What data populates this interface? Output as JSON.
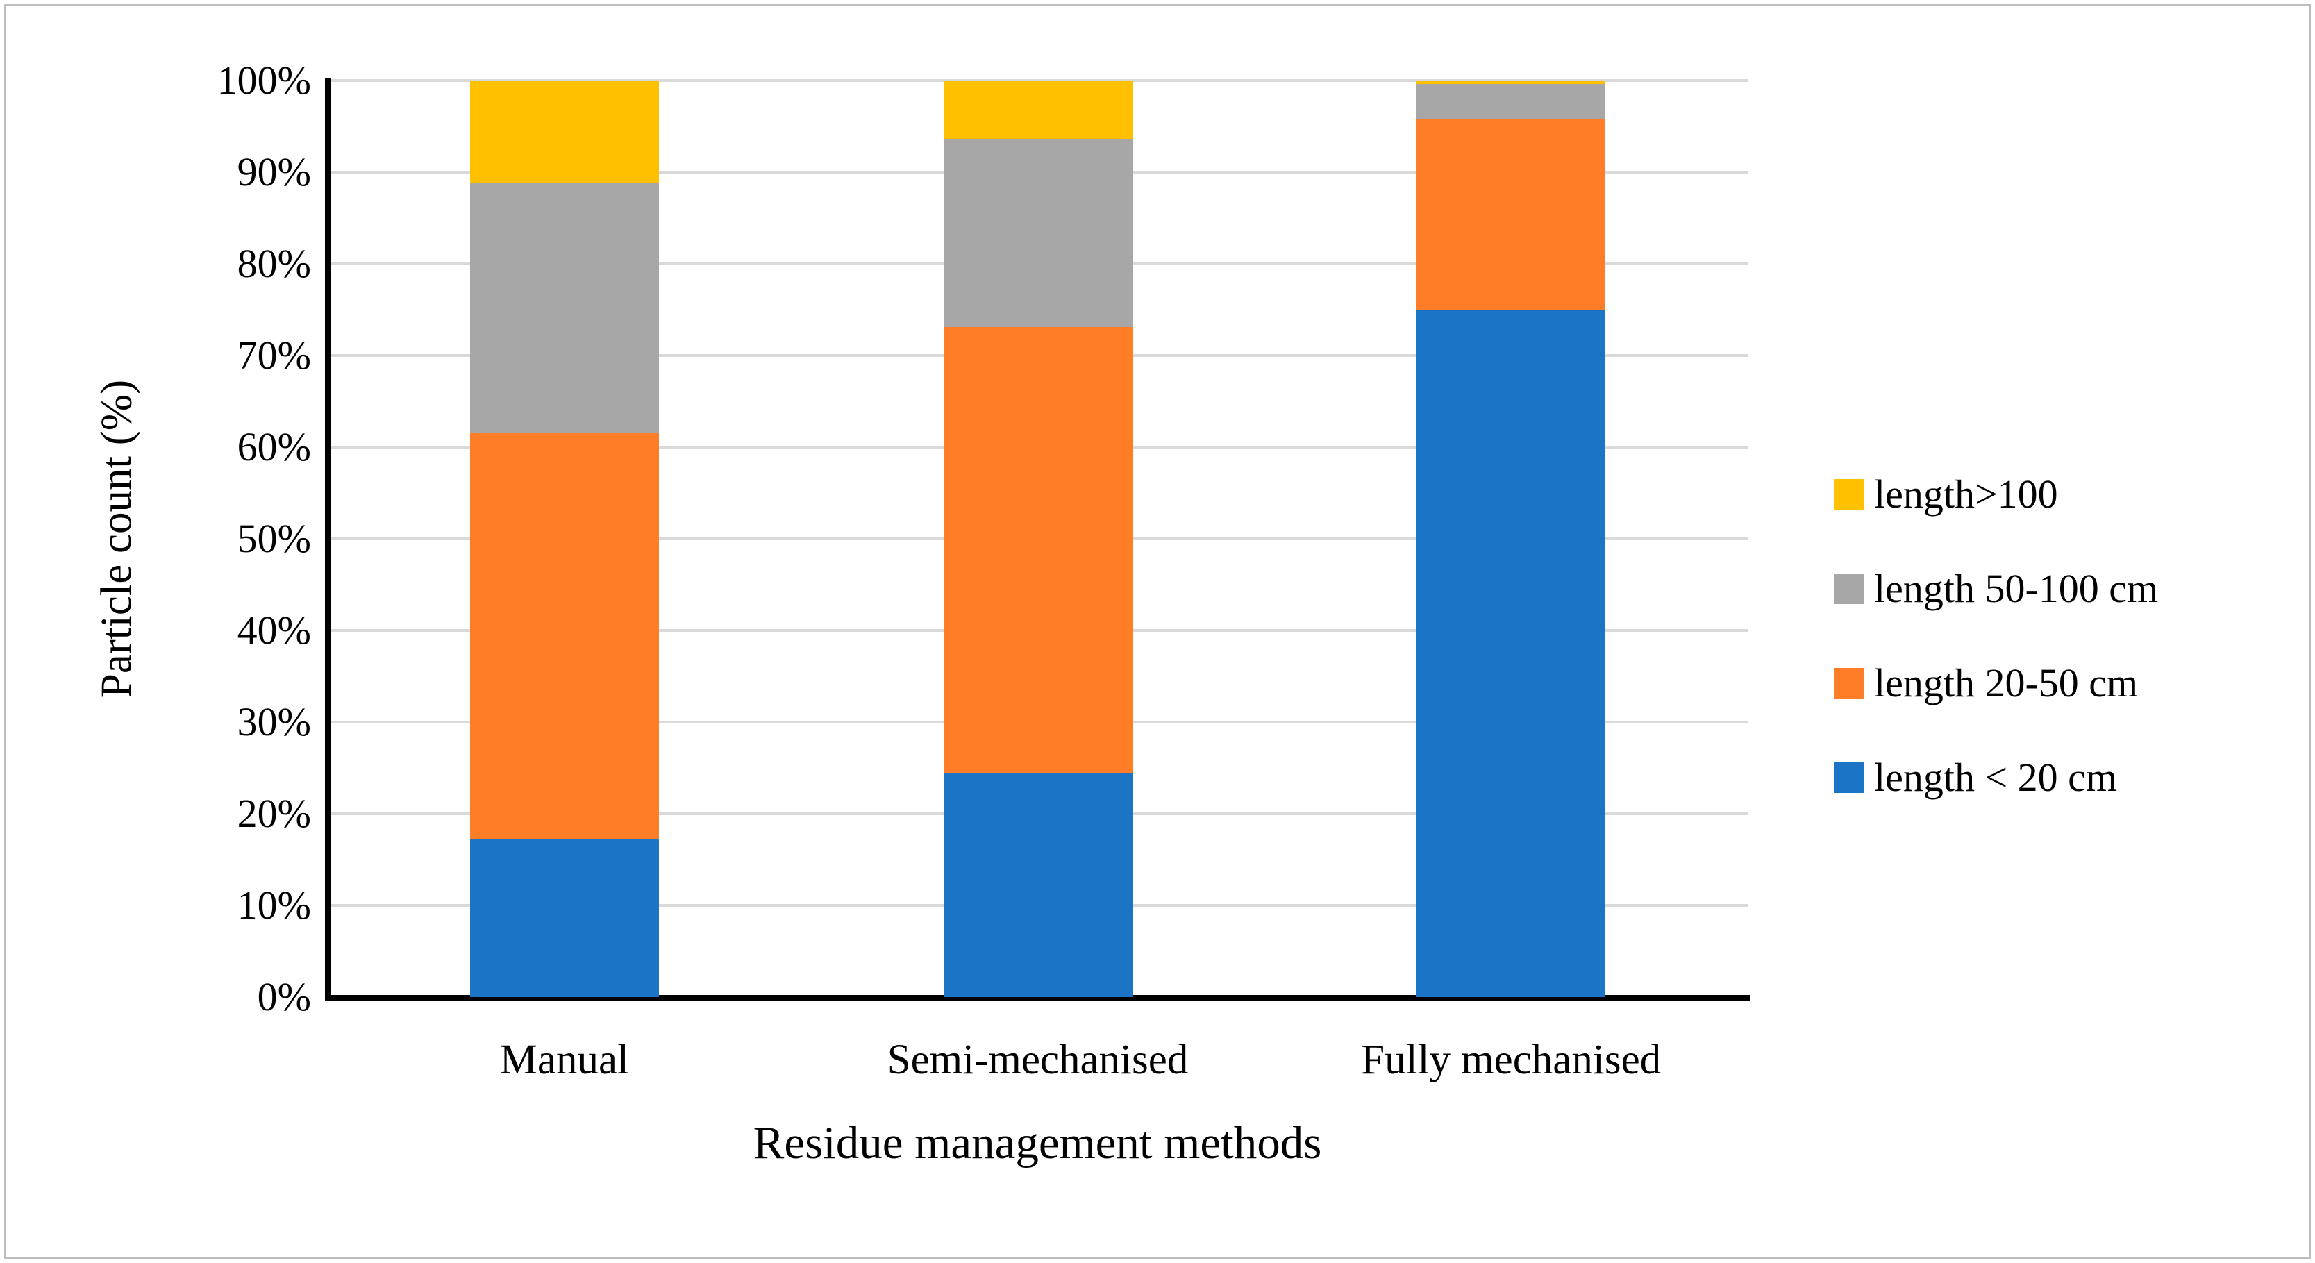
{
  "figure": {
    "background": "#ffffff",
    "border_color": "#bdbdbd"
  },
  "chart_data": {
    "type": "bar",
    "stacked": true,
    "units": "percent",
    "title": "",
    "xlabel": "Residue management methods",
    "ylabel": "Particle count (%)",
    "categories": [
      "Manual",
      "Semi-mechanised",
      "Fully mechanised"
    ],
    "series": [
      {
        "name": "length < 20 cm",
        "color": "#1b74c5",
        "values": [
          17.3,
          24.5,
          75.0
        ]
      },
      {
        "name": "length 20-50 cm",
        "color": "#ff7d27",
        "values": [
          44.2,
          48.6,
          20.8
        ]
      },
      {
        "name": "length 50-100 cm",
        "color": "#a7a7a7",
        "values": [
          27.4,
          20.5,
          3.8
        ]
      },
      {
        "name": "length>100",
        "color": "#ffc000",
        "values": [
          11.1,
          6.4,
          0.4
        ]
      }
    ],
    "stack_order_bottom_to_top": [
      "length < 20 cm",
      "length 20-50 cm",
      "length 50-100 cm",
      "length>100"
    ],
    "legend": {
      "position": "right",
      "items_top_to_bottom": [
        "length>100",
        "length 50-100 cm",
        "length 20-50 cm",
        "length < 20 cm"
      ]
    },
    "y_axis": {
      "min": 0,
      "max": 100,
      "tick_step": 10,
      "ticks": [
        "0%",
        "10%",
        "20%",
        "30%",
        "40%",
        "50%",
        "60%",
        "70%",
        "80%",
        "90%",
        "100%"
      ],
      "grid": true,
      "gridline_color": "#d9d9d9"
    }
  }
}
